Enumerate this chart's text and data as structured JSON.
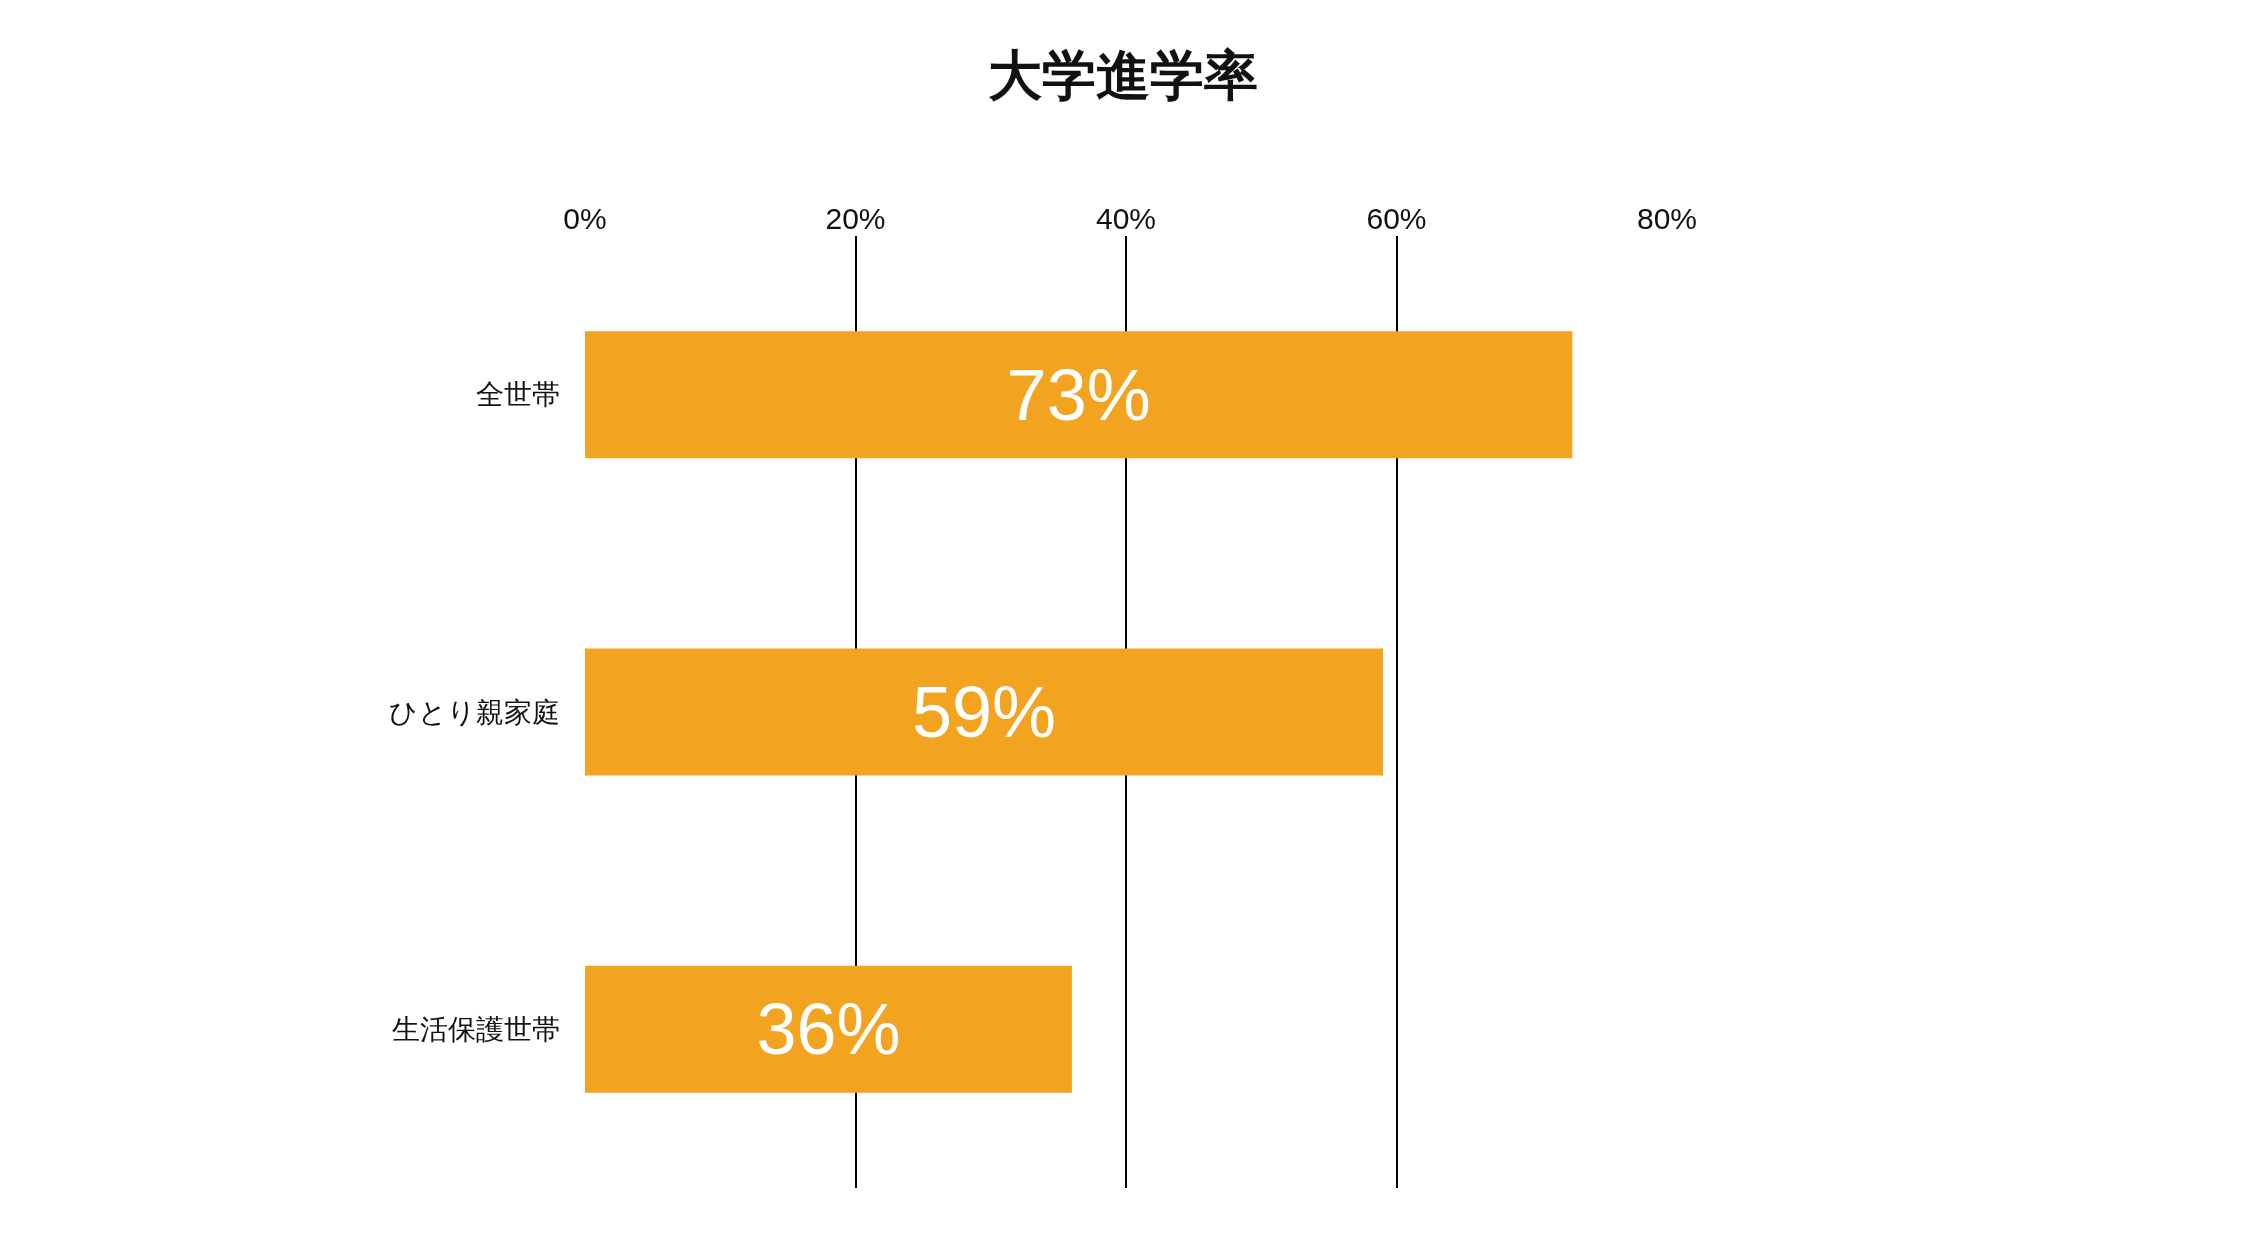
{
  "chart_data": {
    "type": "bar",
    "title": "大学進学率",
    "orientation": "horizontal",
    "categories": [
      "全世帯",
      "ひとり親家庭",
      "生活保護世帯"
    ],
    "values": [
      73,
      59,
      36
    ],
    "value_labels": [
      "73%",
      "59%",
      "36%"
    ],
    "color": "#f2a31f",
    "xlim": [
      0,
      80
    ],
    "xticks": [
      {
        "value": 0,
        "label": "0%"
      },
      {
        "value": 20,
        "label": "20%"
      },
      {
        "value": 40,
        "label": "40%"
      },
      {
        "value": 60,
        "label": "60%"
      },
      {
        "value": 80,
        "label": "80%"
      }
    ],
    "grid": "x",
    "legend": false
  }
}
